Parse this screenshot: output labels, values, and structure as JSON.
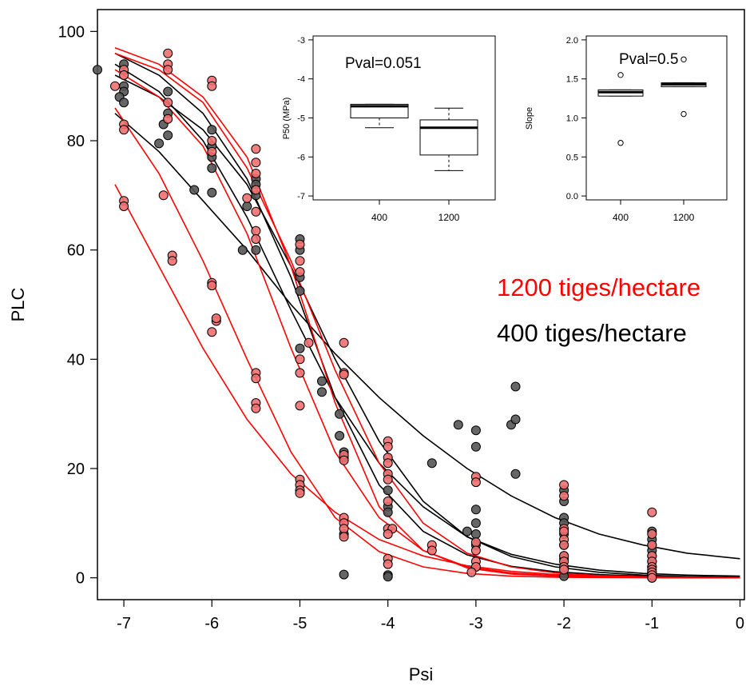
{
  "chart_data": {
    "type": "scatter",
    "xlabel": "Psi",
    "ylabel": "PLC",
    "xlim": [
      -7.3,
      0.05
    ],
    "ylim": [
      -4,
      104
    ],
    "x_ticks": [
      -7,
      -6,
      -5,
      -4,
      -3,
      -2,
      -1,
      0
    ],
    "y_ticks": [
      0,
      20,
      40,
      60,
      80,
      100
    ],
    "legend": {
      "placement": "right-middle",
      "entries": [
        {
          "label": "1200 tiges/hectare",
          "color": "#ff0000"
        },
        {
          "label": "400 tiges/hectare",
          "color": "#000000"
        }
      ]
    },
    "curve_x": [
      -7.1,
      -6.6,
      -6.1,
      -5.6,
      -5.1,
      -4.6,
      -4.1,
      -3.6,
      -3.1,
      -2.6,
      -2.1,
      -1.6,
      -1.1,
      -0.6,
      0
    ],
    "series": [
      {
        "group": "400",
        "color": "#000000",
        "point_fill": "#555555",
        "curve": [
          96,
          92,
          85,
          73,
          55,
          33,
          17,
          8.5,
          4.2,
          2.1,
          1.1,
          0.6,
          0.3,
          0.15,
          0.05
        ]
      },
      {
        "group": "400",
        "color": "#000000",
        "point_fill": "#555555",
        "curve": [
          94,
          89,
          80,
          66,
          49,
          33,
          21,
          13,
          7.5,
          4.3,
          2.5,
          1.4,
          0.8,
          0.5,
          0.3
        ]
      },
      {
        "group": "400",
        "color": "#000000",
        "point_fill": "#555555",
        "curve": [
          92,
          88,
          82,
          72,
          57,
          40,
          25,
          14,
          7.5,
          3.9,
          2.0,
          1.0,
          0.5,
          0.25,
          0.1
        ]
      },
      {
        "group": "400",
        "color": "#000000",
        "point_fill": "#555555",
        "curve": [
          85,
          78,
          69,
          60,
          50,
          41,
          33,
          26,
          20,
          15,
          11,
          8,
          6,
          4.5,
          3.5
        ]
      },
      {
        "group": "1200",
        "color": "#ff0000",
        "point_fill": "#f08080",
        "curve": [
          97,
          94,
          88,
          77,
          57,
          32,
          13,
          5,
          1.8,
          0.7,
          0.3,
          0.1,
          0.05,
          0.02,
          0
        ]
      },
      {
        "group": "1200",
        "color": "#ff0000",
        "point_fill": "#f08080",
        "curve": [
          96,
          93,
          87,
          75,
          58,
          38,
          21,
          10,
          4.5,
          2,
          0.9,
          0.4,
          0.2,
          0.1,
          0
        ]
      },
      {
        "group": "1200",
        "color": "#ff0000",
        "point_fill": "#f08080",
        "curve": [
          93,
          88,
          79,
          63,
          42,
          23,
          11,
          5,
          2,
          0.9,
          0.4,
          0.2,
          0.1,
          0.04,
          0
        ]
      },
      {
        "group": "1200",
        "color": "#ff0000",
        "point_fill": "#f08080",
        "curve": [
          86,
          74,
          58,
          40,
          23,
          11,
          4.8,
          2,
          0.8,
          0.3,
          0.1,
          0.05,
          0.02,
          0,
          0
        ]
      },
      {
        "group": "1200",
        "color": "#ff0000",
        "point_fill": "#f08080",
        "curve": [
          72,
          57,
          42,
          29,
          19,
          12,
          7,
          4,
          2.2,
          1.2,
          0.6,
          0.3,
          0.15,
          0.07,
          0
        ]
      }
    ],
    "points_400": [
      [
        -7.3,
        93
      ],
      [
        -7,
        94
      ],
      [
        -7,
        90
      ],
      [
        -7,
        89
      ],
      [
        -7.05,
        88
      ],
      [
        -7,
        87
      ],
      [
        -6.5,
        89
      ],
      [
        -6.5,
        85
      ],
      [
        -6.55,
        83
      ],
      [
        -6.5,
        81
      ],
      [
        -6.6,
        79.5
      ],
      [
        -6,
        82
      ],
      [
        -6,
        79
      ],
      [
        -6,
        77
      ],
      [
        -6,
        75
      ],
      [
        -6.2,
        71
      ],
      [
        -6,
        70.5
      ],
      [
        -5.5,
        73
      ],
      [
        -5.5,
        72
      ],
      [
        -5.5,
        70
      ],
      [
        -5.6,
        68
      ],
      [
        -5.65,
        60
      ],
      [
        -5.5,
        60
      ],
      [
        -5,
        62
      ],
      [
        -5,
        60
      ],
      [
        -5,
        55
      ],
      [
        -5,
        52.5
      ],
      [
        -5,
        42
      ],
      [
        -4.75,
        36
      ],
      [
        -4.75,
        34
      ],
      [
        -4.55,
        26
      ],
      [
        -4.55,
        30
      ],
      [
        -4.5,
        23
      ],
      [
        -4.5,
        22
      ],
      [
        -4.5,
        8
      ],
      [
        -4.5,
        0.6
      ],
      [
        -4,
        16
      ],
      [
        -4,
        13
      ],
      [
        -4,
        12
      ],
      [
        -4,
        0.5
      ],
      [
        -4,
        0.2
      ],
      [
        -3.5,
        21
      ],
      [
        -3.2,
        28
      ],
      [
        -3,
        27
      ],
      [
        -3,
        24
      ],
      [
        -3,
        12.5
      ],
      [
        -3,
        10
      ],
      [
        -3,
        8
      ],
      [
        -3,
        6
      ],
      [
        -3.1,
        8.5
      ],
      [
        -2.6,
        28
      ],
      [
        -2.55,
        29
      ],
      [
        -2.55,
        35
      ],
      [
        -2.55,
        19
      ],
      [
        -2,
        16
      ],
      [
        -2,
        14
      ],
      [
        -2,
        11
      ],
      [
        -2,
        10
      ],
      [
        -2,
        8
      ],
      [
        -2,
        6
      ],
      [
        -2,
        4
      ],
      [
        -2,
        3.5
      ],
      [
        -2,
        0.3
      ],
      [
        -1,
        8.5
      ],
      [
        -1,
        7
      ],
      [
        -1,
        6
      ],
      [
        -1,
        5
      ],
      [
        -1,
        4
      ],
      [
        -1,
        3
      ],
      [
        -1,
        2
      ],
      [
        -1,
        1
      ],
      [
        -1,
        0.5
      ],
      [
        -1,
        0
      ]
    ],
    "points_1200": [
      [
        -7.1,
        90
      ],
      [
        -7,
        93
      ],
      [
        -7,
        92
      ],
      [
        -7,
        83
      ],
      [
        -7,
        82
      ],
      [
        -7,
        69
      ],
      [
        -7,
        68
      ],
      [
        -6.5,
        96
      ],
      [
        -6.5,
        94
      ],
      [
        -6.5,
        93
      ],
      [
        -6.5,
        87
      ],
      [
        -6.5,
        84
      ],
      [
        -6.55,
        70
      ],
      [
        -6.45,
        59
      ],
      [
        -6.45,
        58
      ],
      [
        -6,
        91
      ],
      [
        -6,
        90
      ],
      [
        -6,
        80
      ],
      [
        -6,
        78
      ],
      [
        -6,
        54
      ],
      [
        -6,
        53.5
      ],
      [
        -5.95,
        47
      ],
      [
        -5.95,
        47.5
      ],
      [
        -6,
        45
      ],
      [
        -5.5,
        78.5
      ],
      [
        -5.5,
        76
      ],
      [
        -5.5,
        74
      ],
      [
        -5.5,
        71
      ],
      [
        -5.5,
        67
      ],
      [
        -5.5,
        63.5
      ],
      [
        -5.5,
        62
      ],
      [
        -5.6,
        69.5
      ],
      [
        -5.5,
        37.5
      ],
      [
        -5.5,
        36.5
      ],
      [
        -5.5,
        32
      ],
      [
        -5.5,
        31
      ],
      [
        -5,
        61
      ],
      [
        -5,
        58
      ],
      [
        -5,
        56
      ],
      [
        -5,
        40
      ],
      [
        -5,
        37.5
      ],
      [
        -5,
        31.5
      ],
      [
        -5,
        18
      ],
      [
        -5,
        17
      ],
      [
        -5,
        16
      ],
      [
        -5,
        15.5
      ],
      [
        -4.9,
        43
      ],
      [
        -4.5,
        43
      ],
      [
        -4.5,
        37.5
      ],
      [
        -4.5,
        37.2
      ],
      [
        -4.5,
        22.5
      ],
      [
        -4.5,
        21.5
      ],
      [
        -4.5,
        11
      ],
      [
        -4.5,
        10
      ],
      [
        -4.5,
        9
      ],
      [
        -4.5,
        7.5
      ],
      [
        -4,
        25
      ],
      [
        -4,
        24
      ],
      [
        -4,
        22
      ],
      [
        -4,
        21
      ],
      [
        -4,
        19
      ],
      [
        -4,
        18
      ],
      [
        -4,
        14
      ],
      [
        -4,
        9
      ],
      [
        -3.95,
        9
      ],
      [
        -4,
        8
      ],
      [
        -4,
        3.5
      ],
      [
        -4,
        2.5
      ],
      [
        -3.5,
        6
      ],
      [
        -3.5,
        5
      ],
      [
        -3,
        18.5
      ],
      [
        -3,
        17.5
      ],
      [
        -3,
        6.5
      ],
      [
        -3,
        5
      ],
      [
        -3,
        3
      ],
      [
        -3,
        2
      ],
      [
        -3.05,
        1
      ],
      [
        -2,
        17
      ],
      [
        -2,
        15
      ],
      [
        -2,
        9
      ],
      [
        -2,
        8.5
      ],
      [
        -2,
        7
      ],
      [
        -2,
        6
      ],
      [
        -2,
        4
      ],
      [
        -2,
        3
      ],
      [
        -2,
        2
      ],
      [
        -2,
        1.5
      ],
      [
        -1,
        12
      ],
      [
        -1,
        8
      ],
      [
        -1,
        6
      ],
      [
        -1,
        4
      ],
      [
        -1,
        3
      ],
      [
        -1,
        2
      ],
      [
        -1,
        1.5
      ],
      [
        -1,
        1
      ],
      [
        -1,
        0.5
      ],
      [
        -1,
        0
      ]
    ],
    "insets": [
      {
        "type": "box",
        "ylabel": "P50 (MPa)",
        "annotation": "Pval=0.051",
        "categories": [
          "400",
          "1200"
        ],
        "ylim": [
          -7.1,
          -2.9
        ],
        "y_ticks": [
          -3,
          -4,
          -5,
          -6,
          -7
        ],
        "boxes": [
          {
            "whisker_low": -5.25,
            "q1": -5.0,
            "median": -4.7,
            "q3": -4.65,
            "whisker_high": -4.65,
            "outliers": []
          },
          {
            "whisker_low": -6.35,
            "q1": -5.95,
            "median": -5.25,
            "q3": -5.05,
            "whisker_high": -4.75,
            "outliers": []
          }
        ]
      },
      {
        "type": "box",
        "ylabel": "Slope",
        "annotation": "Pval=0.5",
        "categories": [
          "400",
          "1200"
        ],
        "ylim": [
          -0.05,
          2.05
        ],
        "y_ticks": [
          2.0,
          1.5,
          1.0,
          0.5,
          0.0
        ],
        "boxes": [
          {
            "whisker_low": 1.28,
            "q1": 1.28,
            "median": 1.33,
            "q3": 1.36,
            "whisker_high": 1.36,
            "outliers": [
              1.55,
              0.68
            ]
          },
          {
            "whisker_low": 1.4,
            "q1": 1.4,
            "median": 1.43,
            "q3": 1.45,
            "whisker_high": 1.45,
            "outliers": [
              1.75,
              1.05
            ]
          }
        ]
      }
    ]
  }
}
